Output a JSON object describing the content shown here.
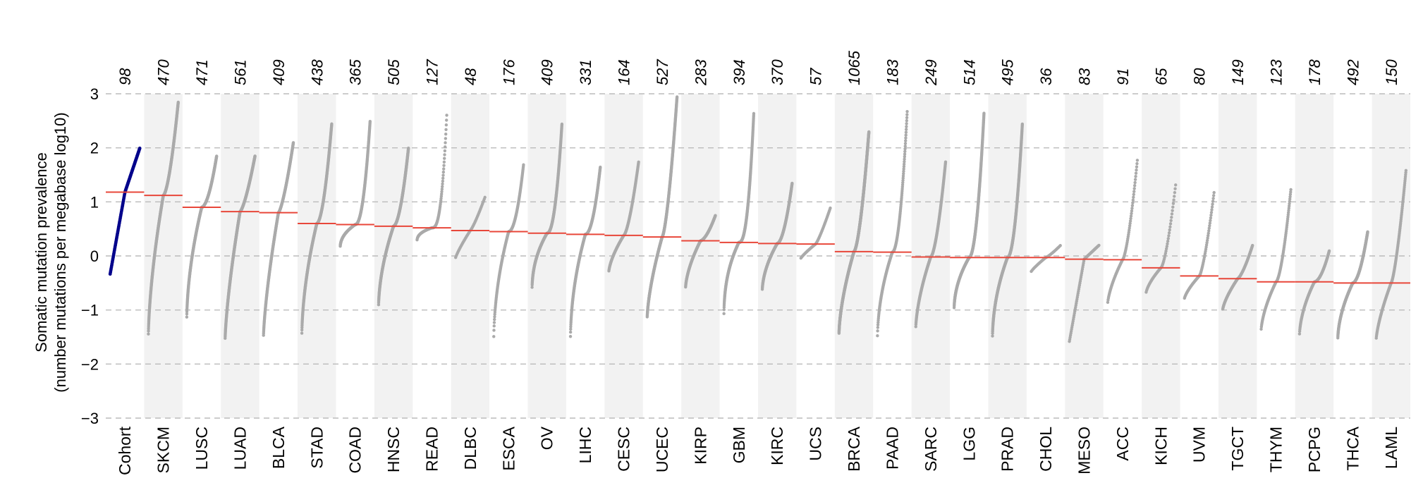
{
  "chart_data": {
    "type": "scatter",
    "ylabel": [
      "Somatic mutation prevalence",
      "(number mutations per megabase log10)"
    ],
    "ylim": [
      -3,
      3
    ],
    "yticks": [
      3,
      2,
      1,
      0,
      -1,
      -2,
      -3
    ],
    "grid": "horizontal dashed",
    "colors": {
      "cohort": "#00008b",
      "points": "#aaaaaa",
      "median": "#e8473a",
      "band": "#f2f2f2",
      "grid": "#bbbbbb"
    },
    "categories": [
      {
        "name": "Cohort",
        "count": "98",
        "n": 98,
        "min": -0.35,
        "max": 2.0,
        "median": 1.18,
        "shape": 1.0,
        "highlight": true
      },
      {
        "name": "SKCM",
        "count": "470",
        "n": 470,
        "min": -1.5,
        "max": 2.85,
        "median": 1.12,
        "shape": 1.6
      },
      {
        "name": "LUSC",
        "count": "471",
        "n": 471,
        "min": -1.2,
        "max": 1.85,
        "median": 0.9,
        "shape": 1.8
      },
      {
        "name": "LUAD",
        "count": "561",
        "n": 561,
        "min": -1.55,
        "max": 1.85,
        "median": 0.82,
        "shape": 1.4
      },
      {
        "name": "BLCA",
        "count": "409",
        "n": 409,
        "min": -1.5,
        "max": 2.1,
        "median": 0.8,
        "shape": 1.4
      },
      {
        "name": "STAD",
        "count": "438",
        "n": 438,
        "min": -1.5,
        "max": 2.45,
        "median": 0.6,
        "shape": 1.8
      },
      {
        "name": "COAD",
        "count": "365",
        "n": 365,
        "min": 0.15,
        "max": 2.5,
        "median": 0.58,
        "shape": 2.2
      },
      {
        "name": "HNSC",
        "count": "505",
        "n": 505,
        "min": -0.95,
        "max": 2.0,
        "median": 0.55,
        "shape": 1.8
      },
      {
        "name": "READ",
        "count": "127",
        "n": 127,
        "min": 0.25,
        "max": 2.65,
        "median": 0.52,
        "shape": 2.8
      },
      {
        "name": "DLBC",
        "count": "48",
        "n": 48,
        "min": -0.05,
        "max": 1.1,
        "median": 0.47,
        "shape": 1.2
      },
      {
        "name": "ESCA",
        "count": "176",
        "n": 176,
        "min": -1.65,
        "max": 1.7,
        "median": 0.45,
        "shape": 2.0
      },
      {
        "name": "OV",
        "count": "409",
        "n": 409,
        "min": -0.65,
        "max": 2.45,
        "median": 0.42,
        "shape": 2.2
      },
      {
        "name": "LIHC",
        "count": "331",
        "n": 331,
        "min": -1.6,
        "max": 1.65,
        "median": 0.4,
        "shape": 2.0
      },
      {
        "name": "CESC",
        "count": "164",
        "n": 164,
        "min": -0.3,
        "max": 1.75,
        "median": 0.38,
        "shape": 1.5
      },
      {
        "name": "UCEC",
        "count": "527",
        "n": 527,
        "min": -1.15,
        "max": 2.95,
        "median": 0.35,
        "shape": 1.5
      },
      {
        "name": "KIRP",
        "count": "283",
        "n": 283,
        "min": -0.6,
        "max": 0.75,
        "median": 0.28,
        "shape": 1.6
      },
      {
        "name": "GBM",
        "count": "394",
        "n": 394,
        "min": -1.2,
        "max": 2.65,
        "median": 0.25,
        "shape": 2.5
      },
      {
        "name": "KIRC",
        "count": "370",
        "n": 370,
        "min": -0.65,
        "max": 1.35,
        "median": 0.23,
        "shape": 1.8
      },
      {
        "name": "UCS",
        "count": "57",
        "n": 57,
        "min": -0.05,
        "max": 0.9,
        "median": 0.22,
        "shape": 1.2
      },
      {
        "name": "BRCA",
        "count": "1065",
        "n": 1065,
        "min": -1.45,
        "max": 2.3,
        "median": 0.08,
        "shape": 1.6
      },
      {
        "name": "PAAD",
        "count": "183",
        "n": 183,
        "min": -1.6,
        "max": 2.7,
        "median": 0.07,
        "shape": 2.0
      },
      {
        "name": "SARC",
        "count": "249",
        "n": 249,
        "min": -1.35,
        "max": 1.75,
        "median": -0.02,
        "shape": 1.6
      },
      {
        "name": "LGG",
        "count": "514",
        "n": 514,
        "min": -1.0,
        "max": 2.65,
        "median": -0.03,
        "shape": 2.0
      },
      {
        "name": "PRAD",
        "count": "495",
        "n": 495,
        "min": -1.55,
        "max": 2.45,
        "median": -0.03,
        "shape": 2.0
      },
      {
        "name": "CHOL",
        "count": "36",
        "n": 36,
        "min": -0.3,
        "max": 0.2,
        "median": -0.03,
        "shape": 1.2
      },
      {
        "name": "MESO",
        "count": "83",
        "n": 83,
        "min": -1.6,
        "max": 0.2,
        "median": -0.06,
        "shape": 1.0
      },
      {
        "name": "ACC",
        "count": "91",
        "n": 91,
        "min": -0.9,
        "max": 1.8,
        "median": -0.07,
        "shape": 1.5
      },
      {
        "name": "KICH",
        "count": "65",
        "n": 65,
        "min": -0.7,
        "max": 1.35,
        "median": -0.22,
        "shape": 1.5
      },
      {
        "name": "UVM",
        "count": "80",
        "n": 80,
        "min": -0.8,
        "max": 1.2,
        "median": -0.37,
        "shape": 1.4
      },
      {
        "name": "TGCT",
        "count": "149",
        "n": 149,
        "min": -1.0,
        "max": 0.2,
        "median": -0.42,
        "shape": 1.4
      },
      {
        "name": "THYM",
        "count": "123",
        "n": 123,
        "min": -1.4,
        "max": 1.25,
        "median": -0.48,
        "shape": 1.6
      },
      {
        "name": "PCPG",
        "count": "178",
        "n": 178,
        "min": -1.5,
        "max": 0.1,
        "median": -0.48,
        "shape": 1.8
      },
      {
        "name": "THCA",
        "count": "492",
        "n": 492,
        "min": -1.55,
        "max": 0.45,
        "median": -0.5,
        "shape": 1.8
      },
      {
        "name": "LAML",
        "count": "150",
        "n": 150,
        "min": -1.55,
        "max": 1.6,
        "median": -0.5,
        "shape": 1.4
      }
    ]
  }
}
